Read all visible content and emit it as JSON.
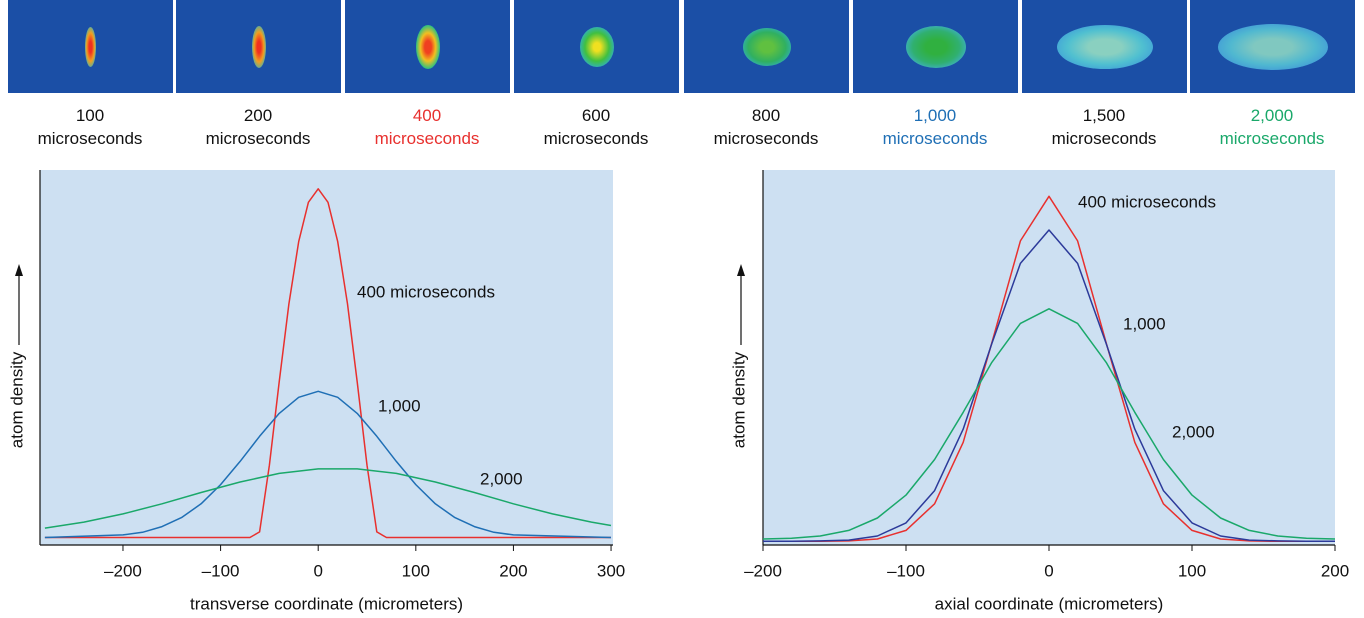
{
  "frames": [
    {
      "time": "100",
      "unit": "microseconds",
      "color": "#111111"
    },
    {
      "time": "200",
      "unit": "microseconds",
      "color": "#111111"
    },
    {
      "time": "400",
      "unit": "microseconds",
      "color": "#e8302e"
    },
    {
      "time": "600",
      "unit": "microseconds",
      "color": "#111111"
    },
    {
      "time": "800",
      "unit": "microseconds",
      "color": "#111111"
    },
    {
      "time": "1,000",
      "unit": "microseconds",
      "color": "#1f6fb5"
    },
    {
      "time": "1,500",
      "unit": "microseconds",
      "color": "#111111"
    },
    {
      "time": "2,000",
      "unit": "microseconds",
      "color": "#1aa86a"
    }
  ],
  "chart_data": [
    {
      "type": "line",
      "xlabel": "transverse coordinate (micrometers)",
      "ylabel": "atom density",
      "xlim": [
        -285,
        302
      ],
      "ylim": [
        0,
        100
      ],
      "xticks": [
        {
          "value": -200,
          "label": "–200"
        },
        {
          "value": -100,
          "label": "–100"
        },
        0,
        100,
        200,
        300
      ],
      "background": "#cde0f2",
      "series": [
        {
          "name": "400 microseconds",
          "color": "#e8302e",
          "x": [
            -280,
            -70,
            -60,
            -50,
            -40,
            -30,
            -20,
            -10,
            0,
            10,
            20,
            30,
            40,
            50,
            60,
            70,
            300
          ],
          "values": [
            2,
            2,
            3.5,
            21.3,
            43.5,
            64.3,
            80.9,
            91.4,
            95,
            91.4,
            80.9,
            64.3,
            43.5,
            21.3,
            3.5,
            2,
            2
          ]
        },
        {
          "name": "1,000",
          "color": "#1f6fb5",
          "x": [
            -280,
            -200,
            -180,
            -160,
            -140,
            -120,
            -100,
            -80,
            -60,
            -40,
            -20,
            0,
            20,
            40,
            60,
            80,
            100,
            120,
            140,
            160,
            180,
            200,
            300
          ],
          "values": [
            2,
            2.7,
            3.4,
            4.9,
            7.3,
            11.0,
            16.1,
            22.3,
            29.0,
            35.1,
            39.4,
            41,
            39.4,
            35.1,
            29.0,
            22.3,
            16.1,
            11.0,
            7.3,
            4.9,
            3.4,
            2.7,
            2
          ]
        },
        {
          "name": "2,000",
          "color": "#1aa86a",
          "x": [
            -280,
            -240,
            -200,
            -160,
            -120,
            -80,
            -40,
            0,
            40,
            80,
            120,
            160,
            200,
            240,
            280,
            300
          ],
          "values": [
            4.5,
            6.1,
            8.3,
            11.0,
            14.0,
            16.8,
            19.1,
            20.3,
            20.3,
            19.1,
            16.8,
            14.0,
            11.0,
            8.3,
            6.1,
            5.2
          ]
        }
      ]
    },
    {
      "type": "line",
      "xlabel": "axial coordinate (micrometers)",
      "ylabel": "atom density",
      "xlim": [
        -200,
        200
      ],
      "ylim": [
        0,
        100
      ],
      "xticks": [
        {
          "value": -200,
          "label": "–200"
        },
        {
          "value": -100,
          "label": "–100"
        },
        0,
        100,
        200
      ],
      "background": "#cde0f2",
      "series": [
        {
          "name": "400 microseconds",
          "color": "#e8302e",
          "x": [
            -200,
            -180,
            -160,
            -140,
            -120,
            -100,
            -80,
            -60,
            -40,
            -20,
            0,
            20,
            40,
            60,
            80,
            100,
            120,
            140,
            160,
            180,
            200
          ],
          "values": [
            1,
            1,
            1,
            1.1,
            1.6,
            3.9,
            11.0,
            27.4,
            53.9,
            81.1,
            93,
            81.1,
            53.9,
            27.4,
            11.0,
            3.9,
            1.6,
            1.1,
            1,
            1,
            1
          ]
        },
        {
          "name": "1,000",
          "color": "#2c3a9a",
          "x": [
            -200,
            -180,
            -160,
            -140,
            -120,
            -100,
            -80,
            -60,
            -40,
            -20,
            0,
            20,
            40,
            60,
            80,
            100,
            120,
            140,
            160,
            180,
            200
          ],
          "values": [
            1,
            1,
            1.1,
            1.3,
            2.4,
            5.9,
            14.5,
            30.9,
            53.7,
            75.1,
            84,
            75.1,
            53.7,
            30.9,
            14.5,
            5.9,
            2.4,
            1.3,
            1.1,
            1,
            1
          ]
        },
        {
          "name": "2,000",
          "color": "#1aa86a",
          "x": [
            -200,
            -180,
            -160,
            -140,
            -120,
            -100,
            -80,
            -60,
            -40,
            -20,
            0,
            20,
            40,
            60,
            80,
            100,
            120,
            140,
            160,
            180,
            200
          ],
          "values": [
            1.6,
            1.8,
            2.4,
            3.9,
            7.2,
            13.3,
            22.8,
            35.4,
            48.7,
            59.1,
            63,
            59.1,
            48.7,
            35.4,
            22.8,
            13.3,
            7.2,
            3.9,
            2.4,
            1.8,
            1.6
          ]
        }
      ]
    }
  ]
}
